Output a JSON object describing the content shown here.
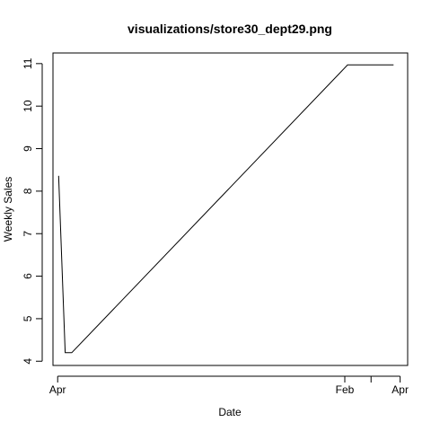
{
  "chart_data": {
    "type": "line",
    "title": "visualizations/store30_dept29.png",
    "xlabel": "Date",
    "ylabel": "Weekly Sales",
    "x_ticks": [
      {
        "date": "2010-04-01",
        "label": "Apr"
      },
      {
        "date": "2011-02-01",
        "label": "Feb"
      },
      {
        "date": "2011-03-01",
        "label": ""
      },
      {
        "date": "2011-04-01",
        "label": "Apr"
      }
    ],
    "y_ticks": [
      4,
      5,
      6,
      7,
      8,
      9,
      10,
      11
    ],
    "xlim": [
      "2010-03-27",
      "2011-04-09"
    ],
    "ylim": [
      3.9,
      11.25
    ],
    "series": [
      {
        "x": [
          "2010-04-02",
          "2010-04-09",
          "2010-04-16",
          "2011-02-04",
          "2011-02-11",
          "2011-03-25"
        ],
        "y": [
          8.36,
          4.2,
          4.2,
          10.97,
          10.97,
          10.97
        ]
      }
    ],
    "line_color": "#000000",
    "grid": false
  }
}
